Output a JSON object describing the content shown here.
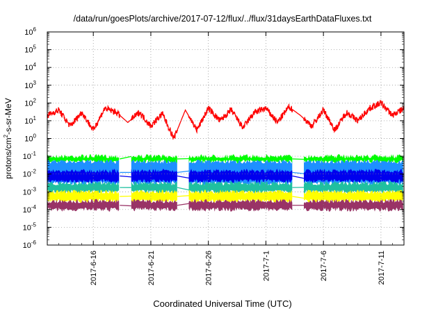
{
  "chart_data": {
    "type": "line",
    "title": "/data/run/goesPlots/archive/2017-07-12/flux/../flux/31daysEarthDataFluxes.txt",
    "xlabel": "Coordinated Universal Time (UTC)",
    "ylabel": "protons/cm2-s-sr-MeV",
    "ylabel_parts": {
      "main": "protons/cm",
      "sup": "2",
      "rest": "-s-sr-MeV"
    },
    "y_scale": "log",
    "ylim": [
      1e-06,
      1000000.0
    ],
    "y_ticks": [
      {
        "exp": -6,
        "text": "10",
        "sup": "-6"
      },
      {
        "exp": -5,
        "text": "10",
        "sup": "-5"
      },
      {
        "exp": -4,
        "text": "10",
        "sup": "-4"
      },
      {
        "exp": -3,
        "text": "10",
        "sup": "-3"
      },
      {
        "exp": -2,
        "text": "10",
        "sup": "-2"
      },
      {
        "exp": -1,
        "text": "10",
        "sup": "-1"
      },
      {
        "exp": 0,
        "text": "10",
        "sup": "0"
      },
      {
        "exp": 1,
        "text": "10",
        "sup": "1"
      },
      {
        "exp": 2,
        "text": "10",
        "sup": "2"
      },
      {
        "exp": 3,
        "text": "10",
        "sup": "3"
      },
      {
        "exp": 4,
        "text": "10",
        "sup": "4"
      },
      {
        "exp": 5,
        "text": "10",
        "sup": "5"
      },
      {
        "exp": 6,
        "text": "10",
        "sup": "6"
      }
    ],
    "xlim": [
      "2017-06-12",
      "2017-07-13"
    ],
    "x_ticks": [
      "2017-6-16",
      "2017-6-21",
      "2017-6-26",
      "2017-7-1",
      "2017-7-6",
      "2017-7-11"
    ],
    "grid": true,
    "legend": "none",
    "gaps": [
      [
        "2017-06-18",
        "2017-06-19"
      ],
      [
        "2017-06-23",
        "2017-06-24"
      ],
      [
        "2017-07-03",
        "2017-07-04"
      ]
    ],
    "series": [
      {
        "color": "#ff0000",
        "style": "line",
        "x": [
          "2017-06-12",
          "2017-06-13",
          "2017-06-14",
          "2017-06-15",
          "2017-06-16",
          "2017-06-17",
          "2017-06-18",
          "2017-06-19",
          "2017-06-20",
          "2017-06-21",
          "2017-06-22",
          "2017-06-23",
          "2017-06-24",
          "2017-06-25",
          "2017-06-26",
          "2017-06-27",
          "2017-06-28",
          "2017-06-29",
          "2017-06-30",
          "2017-07-01",
          "2017-07-02",
          "2017-07-03",
          "2017-07-04",
          "2017-07-05",
          "2017-07-06",
          "2017-07-07",
          "2017-07-08",
          "2017-07-09",
          "2017-07-10",
          "2017-07-11",
          "2017-07-12",
          "2017-07-13"
        ],
        "values": [
          20,
          40,
          5,
          30,
          3,
          50,
          30,
          8,
          30,
          5,
          25,
          1,
          40,
          3,
          50,
          10,
          40,
          4,
          30,
          50,
          8,
          60,
          20,
          5,
          40,
          3,
          30,
          10,
          50,
          100,
          20,
          50
        ]
      },
      {
        "color": "#00ff00",
        "style": "band",
        "low": 0.05,
        "high": 0.1
      },
      {
        "color": "#1e90ff",
        "style": "band",
        "low": 0.003,
        "high": 0.05
      },
      {
        "color": "#0000ee",
        "style": "band",
        "low": 0.004,
        "high": 0.015
      },
      {
        "color": "#20c0a0",
        "style": "band",
        "low": 0.001,
        "high": 0.003
      },
      {
        "color": "#ffff00",
        "style": "band",
        "low": 0.0003,
        "high": 0.001
      },
      {
        "color": "#993366",
        "style": "band",
        "low": 0.0001,
        "high": 0.0003
      }
    ]
  }
}
